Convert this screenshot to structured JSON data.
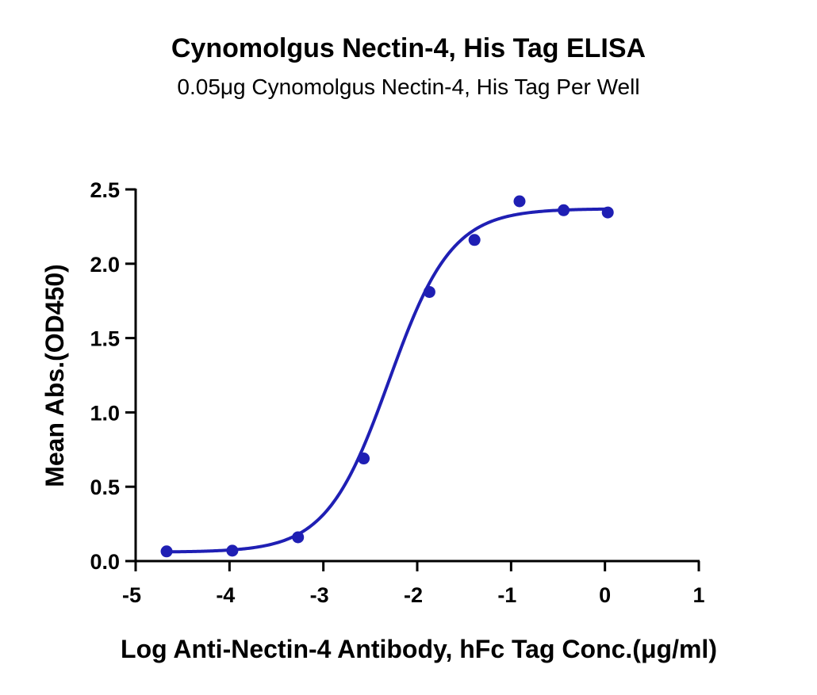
{
  "chart_data": {
    "type": "scatter",
    "title": "Cynomolgus Nectin-4, His Tag ELISA",
    "subtitle": "0.05μg Cynomolgus Nectin-4, His Tag Per Well",
    "xlabel": "Log Anti-Nectin-4 Antibody, hFc Tag Conc.(μg/ml)",
    "ylabel": "Mean Abs.(OD450)",
    "xlim": [
      -5,
      1
    ],
    "ylim": [
      0,
      2.5
    ],
    "x_ticks": [
      -5,
      -4,
      -3,
      -2,
      -1,
      0,
      1
    ],
    "x_tick_labels": [
      "-5",
      "-4",
      "-3",
      "-2",
      "-1",
      "0",
      "1"
    ],
    "y_ticks": [
      0,
      0.5,
      1.0,
      1.5,
      2.0,
      2.5
    ],
    "y_tick_labels": [
      "0.0",
      "0.5",
      "1.0",
      "1.5",
      "2.0",
      "2.5"
    ],
    "grid": false,
    "color": "#1f1fb4",
    "series": [
      {
        "points": [
          {
            "x": -4.67,
            "y": 0.065
          },
          {
            "x": -3.97,
            "y": 0.07
          },
          {
            "x": -3.27,
            "y": 0.16
          },
          {
            "x": -2.57,
            "y": 0.69
          },
          {
            "x": -1.87,
            "y": 1.81
          },
          {
            "x": -1.39,
            "y": 2.16
          },
          {
            "x": -0.91,
            "y": 2.42
          },
          {
            "x": -0.44,
            "y": 2.36
          },
          {
            "x": 0.03,
            "y": 2.345
          }
        ],
        "fit": {
          "model": "4PL",
          "bottom": 0.06,
          "top": 2.37,
          "log_ec50": -2.3,
          "hill_slope": 1.3,
          "x_range": [
            -4.67,
            0.03
          ]
        }
      }
    ]
  }
}
